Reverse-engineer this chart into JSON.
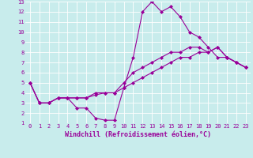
{
  "xlabel": "Windchill (Refroidissement éolien,°C)",
  "ylabel": "",
  "bg_color": "#c8ecec",
  "line_color": "#990099",
  "grid_color": "#ffffff",
  "xlim": [
    -0.5,
    23.5
  ],
  "ylim": [
    1,
    13
  ],
  "xticks": [
    0,
    1,
    2,
    3,
    4,
    5,
    6,
    7,
    8,
    9,
    10,
    11,
    12,
    13,
    14,
    15,
    16,
    17,
    18,
    19,
    20,
    21,
    22,
    23
  ],
  "yticks": [
    1,
    2,
    3,
    4,
    5,
    6,
    7,
    8,
    9,
    10,
    11,
    12,
    13
  ],
  "series1_x": [
    0,
    1,
    2,
    3,
    4,
    5,
    6,
    7,
    8,
    9,
    10,
    11,
    12,
    13,
    14,
    15,
    16,
    17,
    18,
    19,
    20,
    21,
    22,
    23
  ],
  "series1_y": [
    5.0,
    3.0,
    3.0,
    3.5,
    3.5,
    2.5,
    2.5,
    1.5,
    1.3,
    1.3,
    4.5,
    7.5,
    12.0,
    13.0,
    12.0,
    12.5,
    11.5,
    10.0,
    9.5,
    8.5,
    7.5,
    7.5,
    7.0,
    6.5
  ],
  "series2_x": [
    0,
    1,
    2,
    3,
    4,
    5,
    6,
    7,
    8,
    9,
    10,
    11,
    12,
    13,
    14,
    15,
    16,
    17,
    18,
    19,
    20,
    21,
    22,
    23
  ],
  "series2_y": [
    5.0,
    3.0,
    3.0,
    3.5,
    3.5,
    3.5,
    3.5,
    4.0,
    4.0,
    4.0,
    5.0,
    6.0,
    6.5,
    7.0,
    7.5,
    8.0,
    8.0,
    8.5,
    8.5,
    8.0,
    8.5,
    7.5,
    7.0,
    6.5
  ],
  "series3_x": [
    0,
    1,
    2,
    3,
    4,
    5,
    6,
    7,
    8,
    9,
    10,
    11,
    12,
    13,
    14,
    15,
    16,
    17,
    18,
    19,
    20,
    21,
    22,
    23
  ],
  "series3_y": [
    5.0,
    3.0,
    3.0,
    3.5,
    3.5,
    3.5,
    3.5,
    3.8,
    4.0,
    4.0,
    4.5,
    5.0,
    5.5,
    6.0,
    6.5,
    7.0,
    7.5,
    7.5,
    8.0,
    8.0,
    8.5,
    7.5,
    7.0,
    6.5
  ],
  "marker": "D",
  "marker_size": 2,
  "line_width": 0.8,
  "tick_fontsize": 5,
  "label_fontsize": 6
}
